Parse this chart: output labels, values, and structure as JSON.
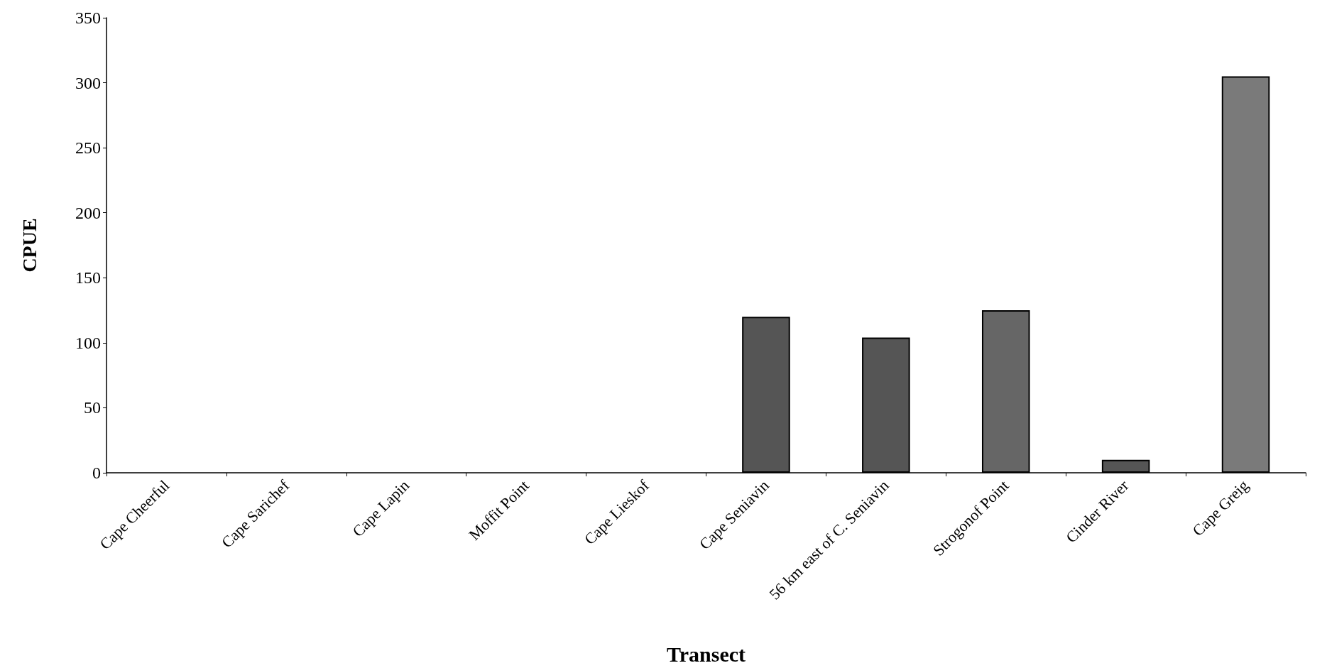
{
  "chart_data": {
    "type": "bar",
    "xlabel": "Transect",
    "ylabel": "CPUE",
    "categories": [
      "Cape Cheerful",
      "Cape Sarichef",
      "Cape Lapin",
      "Moffit Point",
      "Cape Lieskof",
      "Cape Seniavin",
      "56 km east of C. Seniavin",
      "Strogonof Point",
      "Cinder River",
      "Cape Greig"
    ],
    "values": [
      0,
      0,
      0,
      0,
      0,
      120,
      104,
      125,
      10,
      305
    ],
    "colors": [
      "#555555",
      "#555555",
      "#555555",
      "#555555",
      "#555555",
      "#555555",
      "#555555",
      "#666666",
      "#555555",
      "#7a7a7a"
    ],
    "ylim": [
      0,
      350
    ],
    "yticks": [
      0,
      50,
      100,
      150,
      200,
      250,
      300,
      350
    ],
    "grid": false
  }
}
